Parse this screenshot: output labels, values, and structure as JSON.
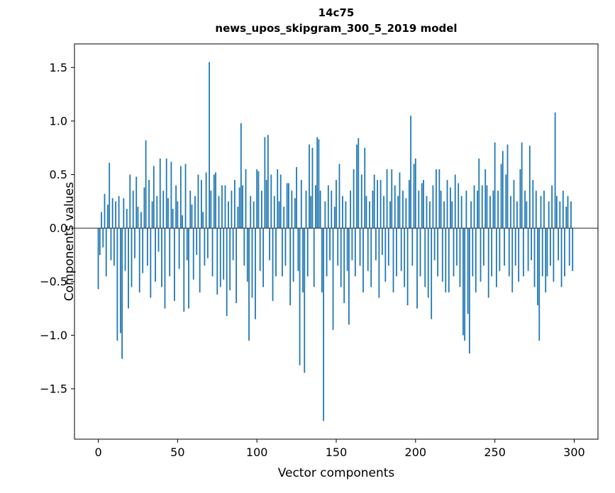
{
  "chart_data": {
    "type": "bar",
    "title": "14c75",
    "subtitle": "news_upos_skipgram_300_5_2019 model",
    "xlabel": "Vector components",
    "ylabel": "Components values",
    "xlim": [
      -15,
      315
    ],
    "ylim": [
      -1.97,
      1.72
    ],
    "x_ticks": [
      0,
      50,
      100,
      150,
      200,
      250,
      300
    ],
    "y_ticks": [
      -1.5,
      -1.0,
      -0.5,
      0.0,
      0.5,
      1.0,
      1.5
    ],
    "bar_color": "#1f77b4",
    "zero_line_color": "#222222",
    "legend": "none",
    "grid": false,
    "values": [
      -0.57,
      -0.25,
      0.15,
      -0.18,
      0.32,
      -0.45,
      0.22,
      0.61,
      -0.3,
      0.28,
      -0.35,
      0.25,
      -1.05,
      0.3,
      -0.98,
      -1.22,
      0.28,
      -0.4,
      0.18,
      -0.75,
      0.5,
      -0.55,
      0.35,
      -0.28,
      0.48,
      0.2,
      -0.6,
      0.15,
      -0.42,
      0.38,
      0.82,
      -0.35,
      0.45,
      -0.65,
      0.25,
      0.58,
      -0.5,
      0.3,
      -0.22,
      0.65,
      -0.55,
      0.35,
      -0.75,
      0.65,
      0.28,
      -0.45,
      0.62,
      0.18,
      -0.68,
      0.4,
      0.25,
      -0.38,
      0.58,
      0.12,
      -0.78,
      0.6,
      -0.3,
      -0.75,
      0.35,
      0.22,
      -0.48,
      0.3,
      -0.25,
      0.5,
      -0.6,
      0.45,
      0.15,
      -0.35,
      0.52,
      -0.28,
      1.55,
      0.35,
      -0.45,
      0.5,
      0.52,
      -0.62,
      0.3,
      -0.55,
      0.4,
      -0.48,
      0.4,
      -0.82,
      0.25,
      -0.58,
      0.35,
      -0.3,
      0.45,
      -0.7,
      0.2,
      0.38,
      0.98,
      0.4,
      -0.35,
      0.55,
      -0.5,
      -1.05,
      0.3,
      -0.65,
      0.25,
      -0.85,
      0.55,
      0.53,
      -0.4,
      0.35,
      -0.55,
      0.85,
      0.45,
      0.87,
      -0.3,
      0.5,
      -0.68,
      0.3,
      -0.45,
      0.55,
      0.25,
      0.5,
      -0.45,
      0.2,
      -0.35,
      0.42,
      0.42,
      -0.72,
      0.35,
      -0.5,
      0.28,
      0.57,
      -0.4,
      -1.28,
      0.45,
      -0.6,
      -1.35,
      0.35,
      -0.45,
      0.78,
      0.3,
      0.75,
      -0.55,
      0.4,
      0.85,
      0.83,
      0.35,
      -0.6,
      -1.8,
      0.25,
      -0.45,
      0.4,
      -0.3,
      0.35,
      -0.95,
      0.2,
      0.45,
      -0.35,
      0.6,
      -0.55,
      0.3,
      -0.7,
      0.25,
      -0.4,
      -0.9,
      0.35,
      -0.3,
      0.55,
      -0.45,
      0.78,
      0.84,
      -0.35,
      0.5,
      -0.6,
      0.75,
      0.3,
      -0.4,
      0.25,
      -0.55,
      0.35,
      0.5,
      -0.3,
      0.45,
      -0.65,
      0.45,
      -0.25,
      0.3,
      -0.5,
      0.55,
      -0.35,
      0.25,
      0.55,
      -0.6,
      0.4,
      -0.45,
      0.3,
      0.52,
      -0.4,
      0.35,
      -0.55,
      0.28,
      -0.72,
      0.45,
      1.05,
      -0.35,
      0.6,
      0.65,
      -0.75,
      0.35,
      -0.45,
      0.42,
      0.45,
      -0.55,
      0.3,
      -0.65,
      0.25,
      -0.85,
      0.4,
      -0.3,
      0.55,
      -0.45,
      0.55,
      0.35,
      -0.5,
      0.25,
      -0.6,
      0.45,
      -0.6,
      0.38,
      0.25,
      -0.45,
      0.5,
      -0.35,
      0.42,
      -0.55,
      0.3,
      -1.0,
      -1.05,
      0.35,
      -0.8,
      -1.17,
      0.25,
      -0.45,
      0.4,
      -0.6,
      0.35,
      0.65,
      -0.5,
      0.4,
      -0.35,
      0.55,
      0.4,
      -0.65,
      0.3,
      -0.45,
      0.35,
      0.8,
      -0.55,
      0.35,
      -0.4,
      0.6,
      0.72,
      -0.35,
      0.5,
      0.78,
      -0.45,
      0.3,
      -0.6,
      0.45,
      -0.35,
      0.25,
      -0.5,
      0.55,
      0.8,
      -0.45,
      0.35,
      0.25,
      -0.4,
      0.77,
      -0.3,
      0.45,
      -0.55,
      0.35,
      -0.72,
      -1.05,
      0.3,
      -0.45,
      0.35,
      -0.6,
      -0.45,
      0.25,
      -0.35,
      0.4,
      -0.5,
      1.08,
      0.3,
      -0.3,
      0.25,
      -0.55,
      0.35,
      -0.45,
      0.2,
      0.3,
      -0.35,
      0.25,
      -0.4
    ]
  }
}
